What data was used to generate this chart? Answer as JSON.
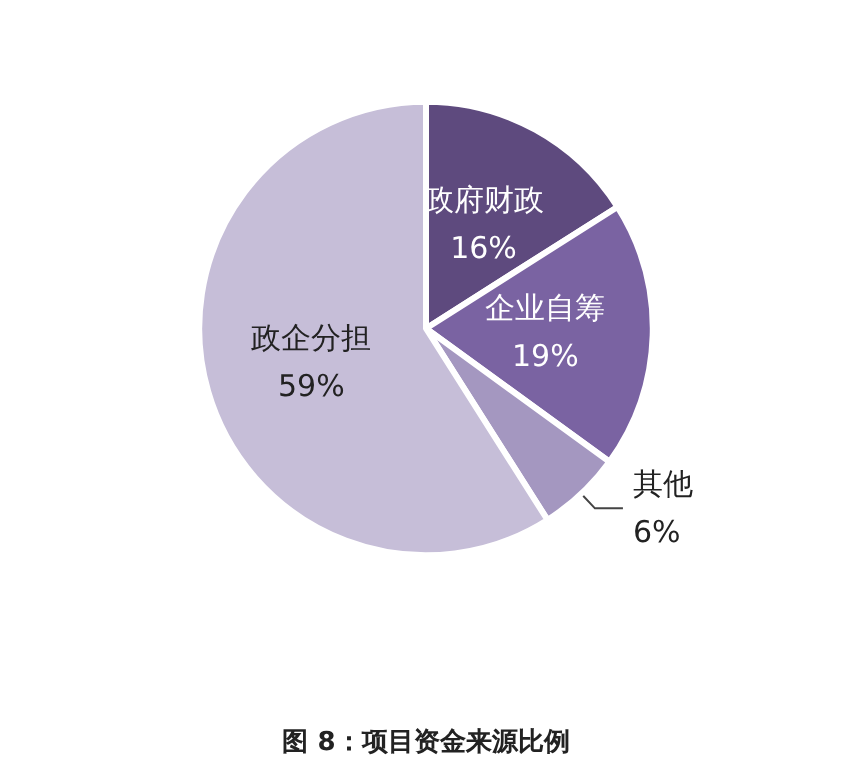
{
  "chart_data": {
    "type": "pie",
    "title": "图 8：项目资金来源比例",
    "categories": [
      "政府财政",
      "企业自筹",
      "其他",
      "政企分担"
    ],
    "values": [
      16,
      19,
      6,
      59
    ],
    "colors": [
      "#5e4a7e",
      "#7a63a2",
      "#a497c0",
      "#c6bed8"
    ],
    "value_labels": [
      "16%",
      "19%",
      "6%",
      "59%"
    ]
  }
}
